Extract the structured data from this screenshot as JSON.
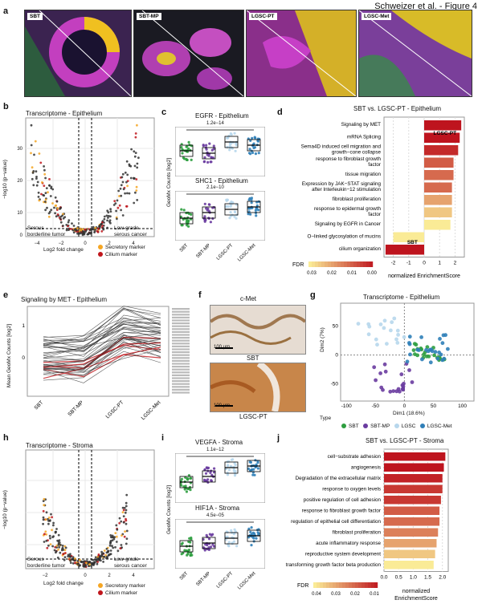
{
  "header": "Schweizer et al. - Figure 4",
  "panel_labels": {
    "a": "a",
    "b": "b",
    "c": "c",
    "d": "d",
    "e": "e",
    "f": "f",
    "g": "g",
    "h": "h",
    "i": "i",
    "j": "j"
  },
  "panel_a": {
    "images": [
      "SBT",
      "SBT-MP",
      "LGSC-PT",
      "LGSC-Met"
    ]
  },
  "panel_b": {
    "title": "Transcriptome - Epithelium",
    "xlabel": "Log2 fold change",
    "ylabel": "−log10 (p−value)",
    "left_note": "Serous\nborderline tumor",
    "right_note": "Low-grade\nserous cancer",
    "legend": [
      "Secretory marker",
      "Cilium marker"
    ],
    "colors": {
      "secretory": "#f5a623",
      "cilium": "#c0161c",
      "other": "#333333"
    }
  },
  "panel_c": {
    "top_title": "EGFR - Epithelium",
    "top_p": "1.2e−14",
    "bottom_title": "SHC1 - Epithelium",
    "bottom_p": "2.1e−10",
    "ylabel": "GeoMx Counts [log2]",
    "groups": [
      "SBT",
      "SBT-MP",
      "LGSC-PT",
      "LGSC-Met"
    ],
    "colors": [
      "#2e9e3f",
      "#6a3ca0",
      "#b7d7ec",
      "#2f7fb8"
    ]
  },
  "panel_d": {
    "title": "SBT vs. LGSC-PT - Epithelium",
    "xlabel": "normalized EnrichmentScore",
    "fdr_label": "FDR",
    "fdr_ticks": [
      "0.03",
      "0.02",
      "0.01",
      "0.00"
    ],
    "tag_top": "LGSC-PT",
    "tag_bottom": "SBT"
  },
  "chart_data": [
    {
      "type": "bar",
      "title": "SBT vs. LGSC-PT - Epithelium",
      "xlabel": "normalized EnrichmentScore",
      "xlim": [
        -2.6,
        2.6
      ],
      "categories": [
        "Signaling by MET",
        "mRNA Splicing",
        "Sema4D induced cell migration and growth−cone collapse",
        "response to fibroblast growth factor",
        "tissue migration",
        "Expression by JAK−STAT signaling after Interleukin−12 stimulation",
        "fibroblast proliferation",
        "response to epidermal growth factor",
        "Signaling by EGFR in Cancer",
        "O−linked glycosylation of mucins",
        "cilium organization"
      ],
      "values": [
        2.4,
        2.3,
        2.2,
        1.9,
        1.9,
        1.8,
        1.8,
        1.8,
        1.7,
        -2.0,
        -2.5
      ],
      "fdr": [
        0.0,
        0.0,
        0.003,
        0.01,
        0.012,
        0.012,
        0.02,
        0.025,
        0.03,
        0.03,
        0.0
      ]
    },
    {
      "type": "bar",
      "title": "SBT vs. LGSC-PT - Stroma",
      "xlabel": "normalized EnrichmentScore",
      "xlim": [
        0,
        2.2
      ],
      "categories": [
        "cell−substrate adhesion",
        "angiogenesis",
        "Degradation of the extracellular matrix",
        "response to oxygen levels",
        "positive regulation of cell adhesion",
        "response to fibroblast growth factor",
        "regulation of epithelial cell differentiation",
        "fibroblast proliferation",
        "acute inflammatory response",
        "reproductive system development",
        "transforming growth factor beta production"
      ],
      "values": [
        2.1,
        2.05,
        2.0,
        2.0,
        1.95,
        1.9,
        1.9,
        1.85,
        1.8,
        1.75,
        1.7
      ],
      "fdr": [
        0.01,
        0.01,
        0.012,
        0.015,
        0.015,
        0.02,
        0.022,
        0.025,
        0.03,
        0.035,
        0.04
      ]
    }
  ],
  "panel_e": {
    "title": "Signaling by MET - Epithelium",
    "ylabel": "Mean GeoMx Counts [log2]",
    "groups": [
      "SBT",
      "SBT-MP",
      "LGSC-PT",
      "LGSC-Met"
    ],
    "yticks": [
      "1",
      "0"
    ]
  },
  "panel_f": {
    "title": "c-Met",
    "label_top": "SBT",
    "label_bottom": "LGSC-PT",
    "scale": "100 µm"
  },
  "panel_g": {
    "title": "Transcriptome - Epithelium",
    "xlabel": "Dim1 (18.6%)",
    "ylabel": "Dim2 (7%)",
    "xticks": [
      "-100",
      "-50",
      "0",
      "50",
      "100"
    ],
    "yticks": [
      "50",
      "0",
      "-50"
    ],
    "legend_title": "Type",
    "legend": [
      "SBT",
      "SBT-MP",
      "LGSC",
      "LGSC-Met"
    ],
    "colors": [
      "#2e9e3f",
      "#6a3ca0",
      "#b7d7ec",
      "#2f7fb8"
    ]
  },
  "panel_h": {
    "title": "Transcriptome - Stroma",
    "xlabel": "Log2 fold change",
    "ylabel": "−log10 (p−value)",
    "left_note": "Serous\nborderline tumor",
    "right_note": "Low-grade\nserous cancer",
    "legend": [
      "Secretory marker",
      "Cilium marker"
    ]
  },
  "panel_i": {
    "top_title": "VEGFA - Stroma",
    "top_p": "1.1e−12",
    "bottom_title": "HIF1A - Stroma",
    "bottom_p": "4.5e−05",
    "ylabel": "GeoMx Counts [log2]",
    "groups": [
      "SBT",
      "SBT-MP",
      "LGSC-PT",
      "LGSC-Met"
    ]
  },
  "panel_j": {
    "title": "SBT vs. LGSC-PT - Stroma",
    "xlabel": "normalized EnrichmentScore",
    "fdr_label": "FDR",
    "fdr_ticks": [
      "0.04",
      "0.03",
      "0.02",
      "0.01"
    ],
    "xticks": [
      "0.0",
      "0.5",
      "1.0",
      "1.5",
      "2.0"
    ]
  }
}
